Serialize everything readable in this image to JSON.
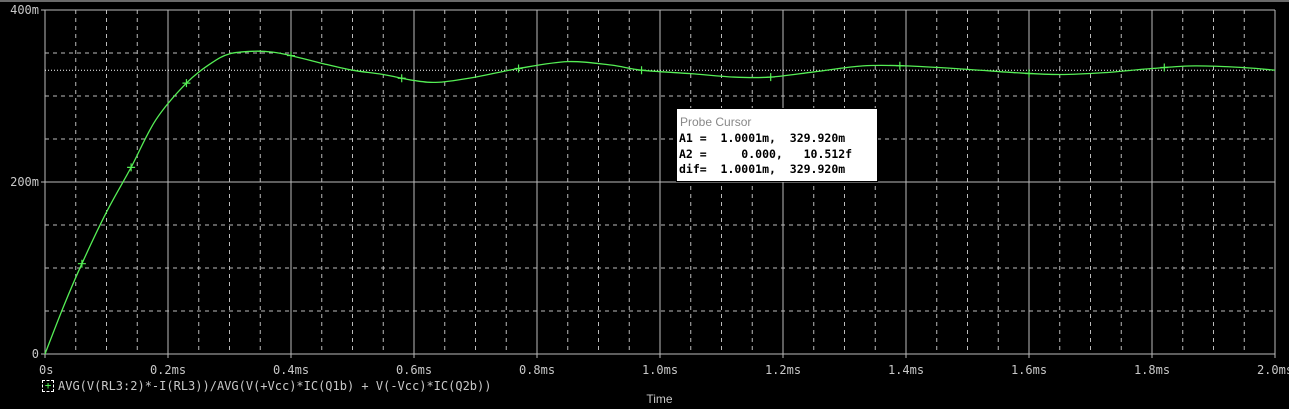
{
  "chart_data": {
    "type": "line",
    "xlabel": "Time",
    "xlim": [
      0,
      2.0
    ],
    "ylim": [
      0,
      400
    ],
    "x_ticks": [
      "0s",
      "0.2ms",
      "0.4ms",
      "0.6ms",
      "0.8ms",
      "1.0ms",
      "1.2ms",
      "1.4ms",
      "1.6ms",
      "1.8ms",
      "2.0ms"
    ],
    "y_ticks": [
      "0",
      "200m",
      "400m"
    ],
    "grid": true,
    "cursor_level": 329.92,
    "series": [
      {
        "name": "AVG(V(RL3:2)*-I(RL3))/AVG(V(+Vcc)*IC(Q1b) + V(-Vcc)*IC(Q2b))",
        "color": "#55ee55",
        "x_unit": "ms",
        "y_unit": "m",
        "x": [
          0,
          0.03,
          0.06,
          0.1,
          0.14,
          0.18,
          0.23,
          0.27,
          0.3,
          0.34,
          0.37,
          0.4,
          0.45,
          0.5,
          0.55,
          0.6,
          0.64,
          0.7,
          0.77,
          0.85,
          0.92,
          0.97,
          1.05,
          1.12,
          1.18,
          1.25,
          1.33,
          1.4,
          1.5,
          1.58,
          1.65,
          1.72,
          1.8,
          1.87,
          1.95,
          2.0
        ],
        "y": [
          0,
          55,
          105,
          165,
          217,
          272,
          315,
          338,
          349,
          352,
          351,
          347,
          338,
          330,
          325,
          318,
          316,
          322,
          332,
          340,
          336,
          330,
          326,
          322,
          322,
          328,
          335,
          335,
          331,
          327,
          325,
          327,
          332,
          335,
          333,
          330
        ],
        "markers_x": [
          0.06,
          0.14,
          0.23,
          0.4,
          0.58,
          0.77,
          0.97,
          1.18,
          1.39,
          1.6,
          1.82
        ]
      }
    ]
  },
  "probe": {
    "title": "Probe Cursor",
    "rows": [
      "A1 =  1.0001m,  329.920m",
      "A2 =     0.000,   10.512f",
      "dif=  1.0001m,  329.920m"
    ]
  },
  "legend": {
    "symbol": "+"
  }
}
